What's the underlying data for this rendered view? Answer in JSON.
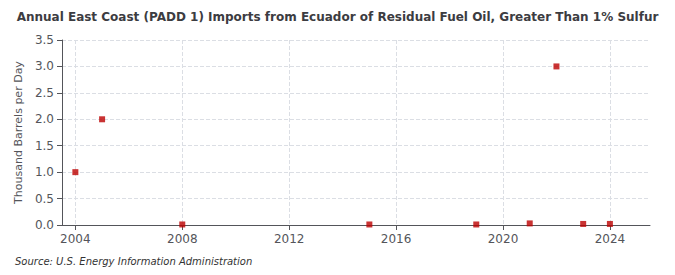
{
  "chart_data": {
    "type": "scatter",
    "title": "Annual East Coast (PADD 1) Imports from Ecuador of Residual Fuel Oil, Greater Than 1% Sulfur",
    "ylabel": "Thousand Barrels per Day",
    "annotation": "Source: U.S. Energy Information Administration",
    "x": [
      2004,
      2005,
      2008,
      2015,
      2019,
      2021,
      2022,
      2023,
      2024
    ],
    "values": [
      1.0,
      2.0,
      0.01,
      0.01,
      0.01,
      0.03,
      3.0,
      0.02,
      0.02
    ],
    "color": "#bb0000",
    "marker": "square",
    "xlim": [
      2003.5,
      2025.5
    ],
    "ylim": [
      0.0,
      3.5
    ],
    "xticks": [
      2004,
      2008,
      2012,
      2016,
      2020,
      2024
    ],
    "yticks": [
      {
        "value": 0.0,
        "label": "0.0"
      },
      0.5,
      {
        "value": 1.0,
        "label": "1.0"
      },
      1.5,
      {
        "value": 2.0,
        "label": "2.0"
      },
      2.5,
      {
        "value": 3.0,
        "label": "3.0"
      },
      3.5
    ],
    "grid": true
  }
}
